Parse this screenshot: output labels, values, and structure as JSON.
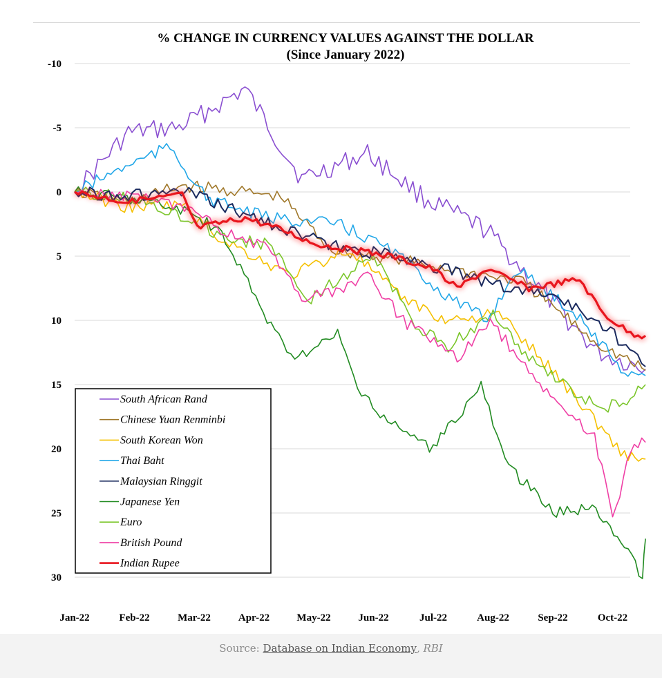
{
  "chart_data": {
    "type": "line",
    "title": "% CHANGE IN CURRENCY VALUES AGAINST THE DOLLAR",
    "subtitle": "(Since January 2022)",
    "xlabel": "",
    "ylabel": "",
    "ylim": [
      -10,
      30
    ],
    "y_inverted": true,
    "y_ticks": [
      "-10",
      "-5",
      "0",
      "5",
      "10",
      "15",
      "20",
      "25",
      "30"
    ],
    "categories": [
      "Jan-22",
      "Feb-22",
      "Mar-22",
      "Apr-22",
      "May-22",
      "Jun-22",
      "Jul-22",
      "Aug-22",
      "Sep-22",
      "Oct-22"
    ],
    "legend_position": "bottom-left",
    "series": [
      {
        "name": "South African Rand",
        "color": "#8a4fd1",
        "width": 1.6,
        "values": [
          0,
          -4.6,
          -5.0,
          -8.0,
          -1.0,
          -3.0,
          0.5,
          3.0,
          7.2,
          12.5,
          13.8
        ],
        "x": [
          0,
          0.9,
          1.75,
          2.85,
          3.8,
          4.9,
          5.85,
          6.9,
          7.7,
          8.75,
          9.55
        ]
      },
      {
        "name": "Chinese Yuan Renminbi",
        "color": "#a0782a",
        "width": 1.6,
        "values": [
          0,
          0.8,
          -0.5,
          0.0,
          0.4,
          4.5,
          5.2,
          6.2,
          7.0,
          11.8,
          13.9
        ],
        "x": [
          0,
          0.9,
          1.8,
          2.8,
          3.45,
          4.3,
          5.3,
          6.5,
          7.5,
          8.75,
          9.55
        ]
      },
      {
        "name": "South Korean Won",
        "color": "#f5c000",
        "width": 1.6,
        "values": [
          0,
          1.2,
          1.0,
          3.5,
          6.5,
          4.5,
          8.0,
          10.0,
          9.5,
          15.5,
          20.5,
          20.8
        ],
        "x": [
          0,
          0.9,
          1.8,
          2.4,
          3.6,
          4.6,
          5.4,
          6.2,
          7.1,
          8.3,
          9.2,
          9.55
        ]
      },
      {
        "name": "Thai Baht",
        "color": "#22a7e8",
        "width": 1.6,
        "values": [
          0,
          -2.0,
          -3.5,
          0.5,
          2.0,
          2.5,
          4.5,
          8.0,
          10.0,
          6.0,
          9.5,
          14.0,
          14.3
        ],
        "x": [
          0,
          0.85,
          1.6,
          2.2,
          3.2,
          4.4,
          5.3,
          6.2,
          6.9,
          7.4,
          8.4,
          9.2,
          9.55
        ]
      },
      {
        "name": "Malaysian Ringgit",
        "color": "#1a2a5e",
        "width": 2,
        "values": [
          0,
          0.3,
          0.0,
          1.5,
          2.5,
          4.5,
          5.0,
          6.5,
          7.5,
          8.0,
          10.5,
          13.6
        ],
        "x": [
          0,
          0.9,
          1.85,
          2.7,
          3.3,
          4.5,
          5.5,
          6.5,
          7.3,
          8.0,
          8.9,
          9.55
        ]
      },
      {
        "name": "Japanese Yen",
        "color": "#228b22",
        "width": 1.6,
        "values": [
          0,
          0.5,
          1.5,
          3.0,
          7.0,
          11.0,
          13.0,
          11.0,
          16.0,
          18.0,
          20.0,
          15.0,
          21.0,
          25.0,
          24.5,
          25.5,
          30.0,
          27.0
        ],
        "x": [
          0,
          1.0,
          1.9,
          2.4,
          2.9,
          3.35,
          3.75,
          4.4,
          4.8,
          5.3,
          6.0,
          6.8,
          7.2,
          8.0,
          8.6,
          8.9,
          9.5,
          9.55
        ]
      },
      {
        "name": "Euro",
        "color": "#7cc62c",
        "width": 1.6,
        "values": [
          0,
          0.5,
          2.0,
          3.5,
          4.2,
          8.5,
          6.5,
          5.0,
          10.5,
          12.0,
          9.5,
          13.0,
          17.0,
          16.0,
          15.0
        ],
        "x": [
          0,
          1.0,
          1.9,
          2.5,
          3.3,
          3.9,
          4.5,
          5.0,
          5.7,
          6.25,
          7.0,
          7.6,
          8.8,
          9.3,
          9.55
        ]
      },
      {
        "name": "British Pound",
        "color": "#ef3fa5",
        "width": 1.6,
        "values": [
          0,
          0.3,
          1.5,
          3.0,
          4.5,
          8.5,
          7.5,
          6.5,
          10.0,
          13.0,
          10.0,
          14.0,
          17.0,
          19.0,
          25.5,
          20.0,
          19.5
        ],
        "x": [
          0,
          1.0,
          1.9,
          2.5,
          3.3,
          3.8,
          4.5,
          4.9,
          5.5,
          6.4,
          6.95,
          7.6,
          8.2,
          8.7,
          9.0,
          9.3,
          9.55
        ]
      },
      {
        "name": "Indian Rupee",
        "color": "#e8161e",
        "width": 3.2,
        "values": [
          0,
          0.8,
          0.2,
          2.8,
          2.0,
          3.0,
          4.0,
          4.5,
          5.0,
          6.0,
          7.5,
          6.0,
          7.5,
          6.8,
          9.5,
          11.0,
          11.2
        ],
        "x": [
          0,
          0.9,
          1.8,
          2.05,
          2.85,
          3.5,
          4.0,
          4.6,
          5.3,
          6.0,
          6.4,
          6.9,
          7.6,
          8.45,
          8.85,
          9.3,
          9.55
        ]
      }
    ]
  },
  "source": {
    "prefix": "Source: ",
    "link": "Database on Indian Economy",
    "suffix": ", RBI"
  }
}
